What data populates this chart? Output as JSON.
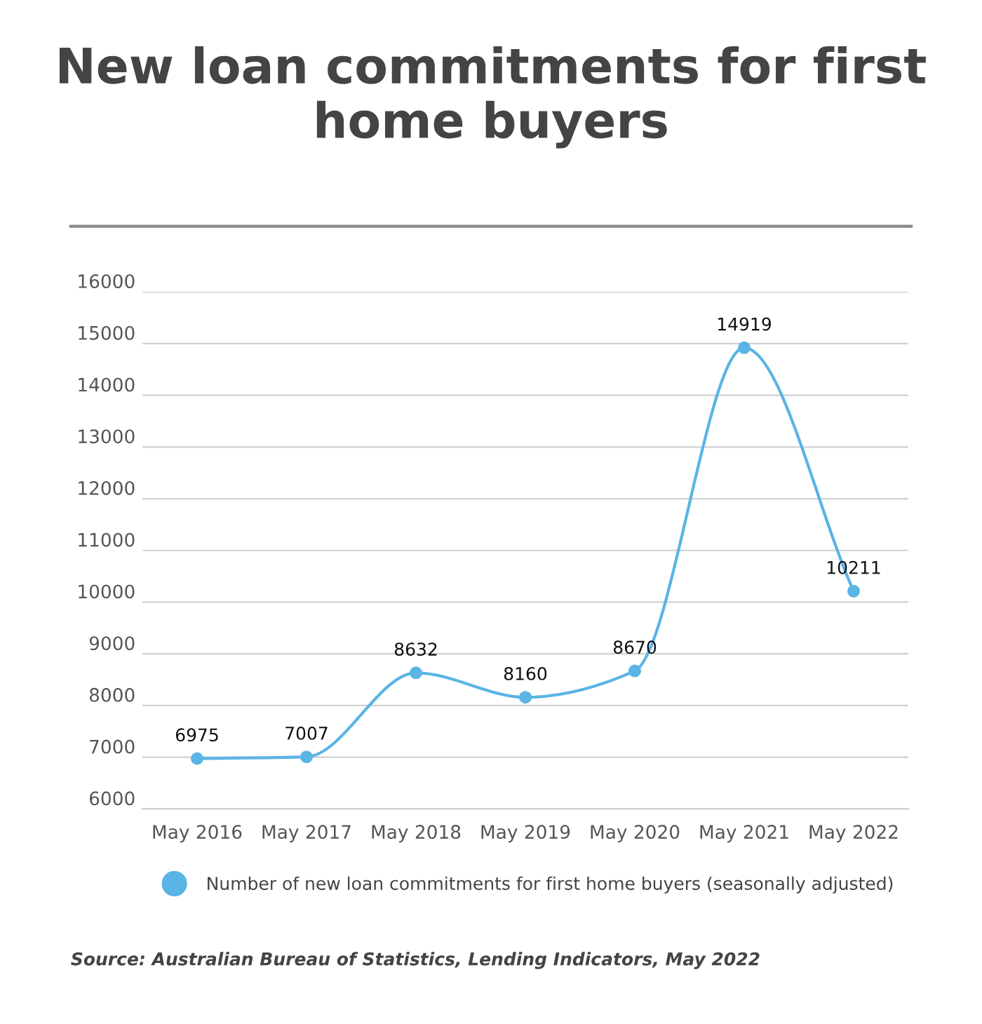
{
  "chart_data": {
    "type": "line",
    "title": "New loan commitments for first home buyers",
    "categories": [
      "May 2016",
      "May 2017",
      "May 2018",
      "May 2019",
      "May 2020",
      "May 2021",
      "May 2022"
    ],
    "series": [
      {
        "name": "Number of new loan commitments for first home buyers (seasonally adjusted)",
        "color": "#5ab4e5",
        "values": [
          6975,
          7007,
          8632,
          8160,
          8670,
          14919,
          10211
        ]
      }
    ],
    "ylim": [
      6000,
      16000
    ],
    "yticks": [
      6000,
      7000,
      8000,
      9000,
      10000,
      11000,
      12000,
      13000,
      14000,
      15000,
      16000
    ],
    "grid": "y",
    "legend": "bottom",
    "marker": "circle",
    "line_style": "solid",
    "data_labels": true,
    "annotations": [
      "Source: Australian Bureau of Statistics, Lending Indicators, May 2022"
    ]
  }
}
